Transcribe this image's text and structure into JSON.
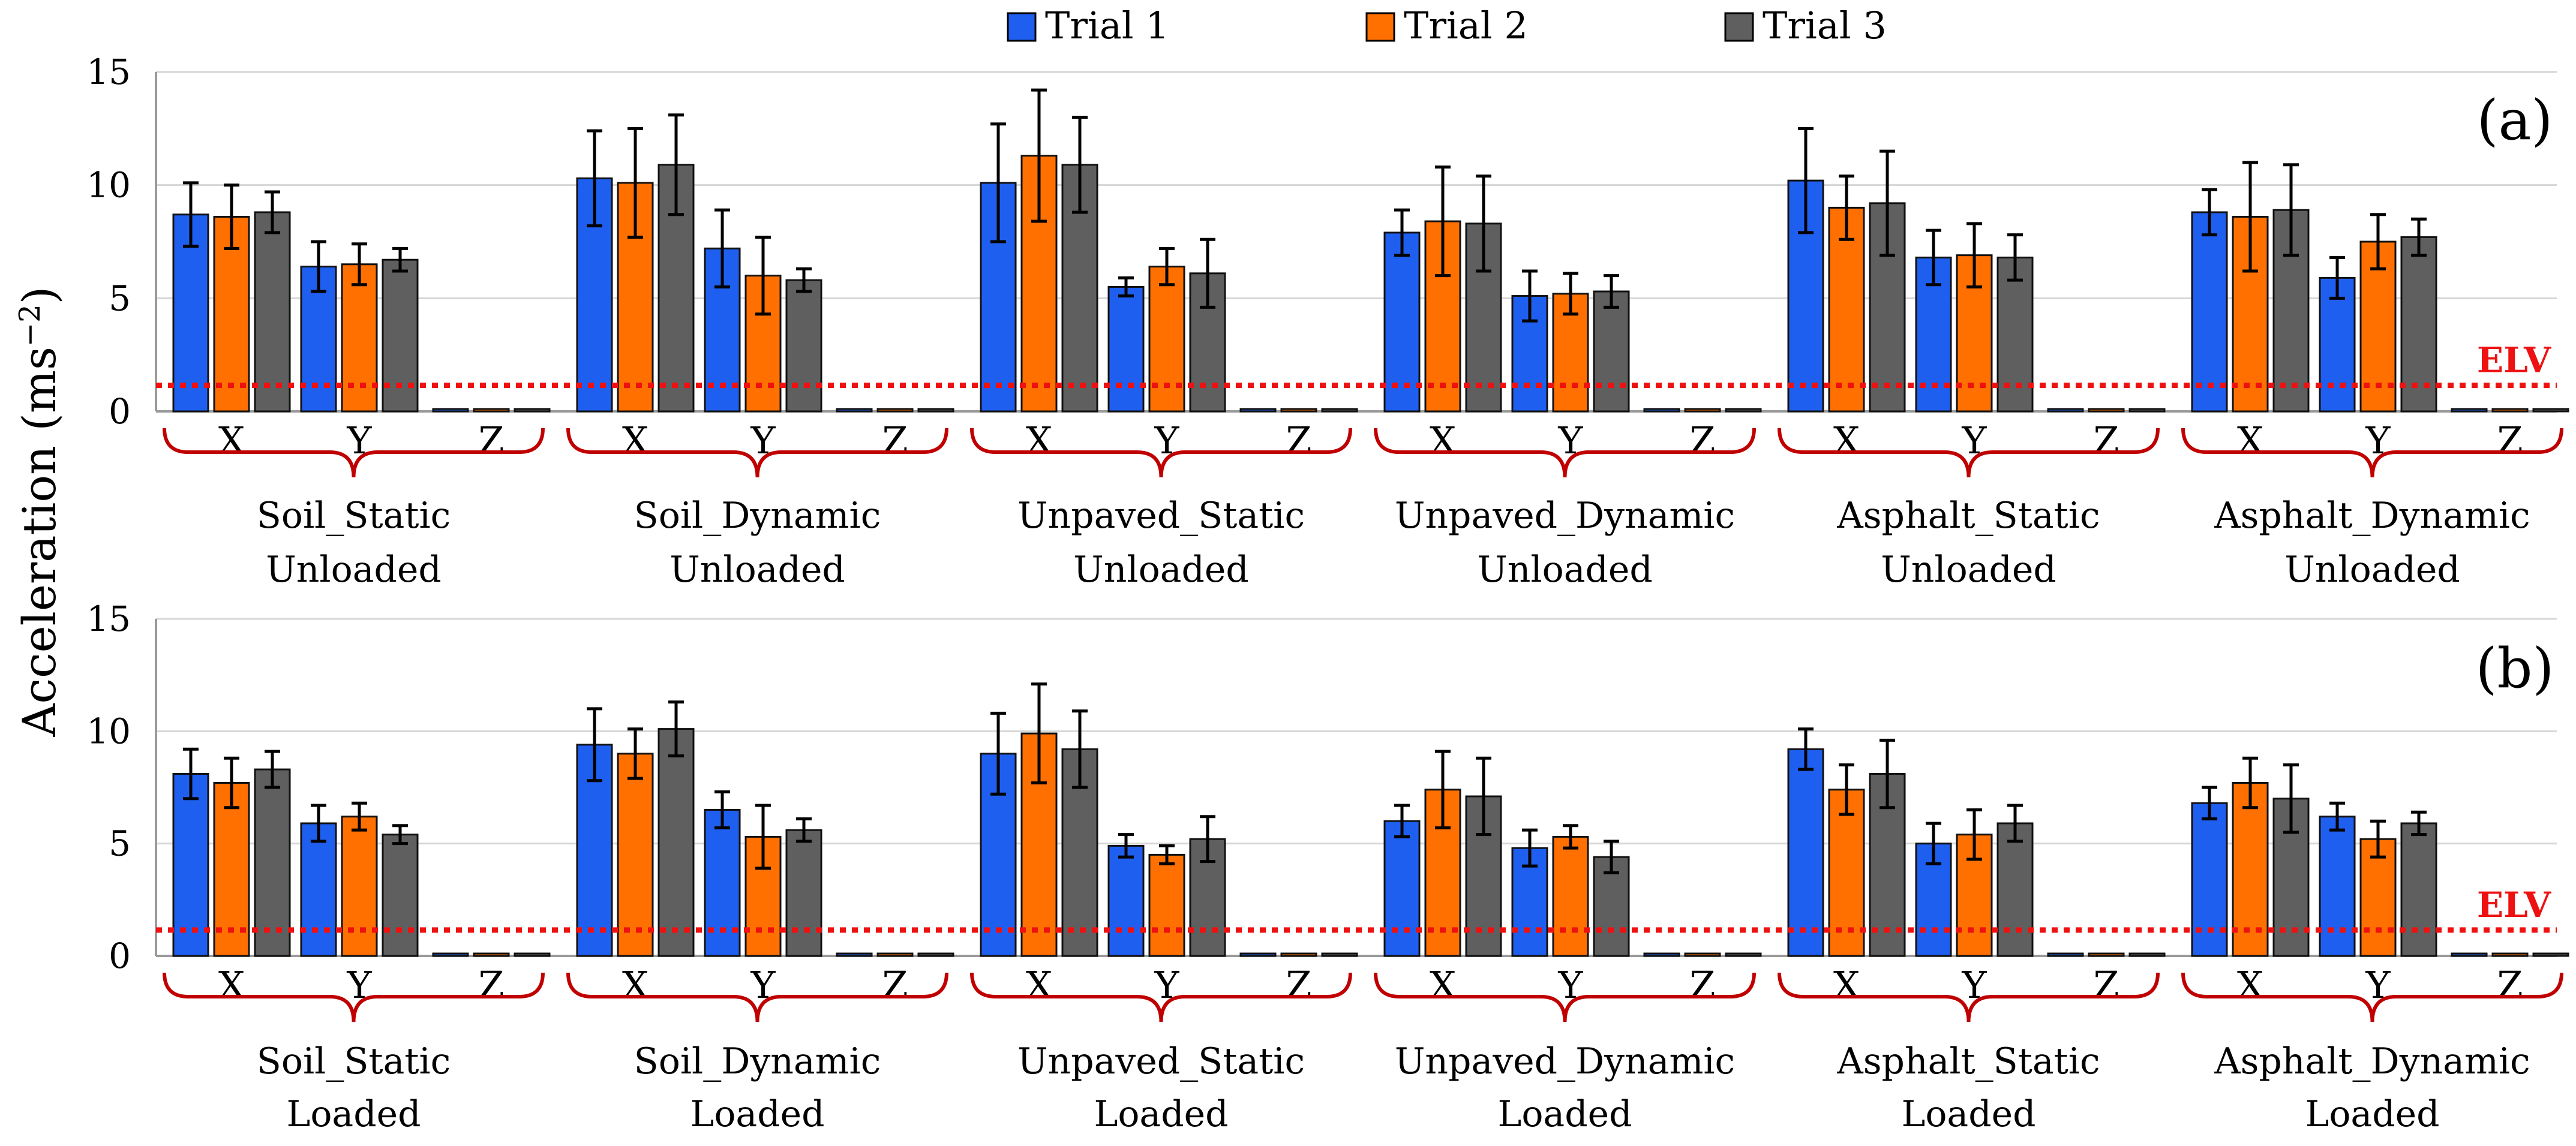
{
  "chart_data": {
    "type": "bar",
    "ylabel": "Acceleration (ms",
    "ylabel_sup": "−2",
    "yticks": [
      "0",
      "5",
      "10",
      "15"
    ],
    "ylim": [
      0,
      15
    ],
    "grid": true,
    "legend": {
      "position": "top-center",
      "entries": [
        {
          "name": "Trial 1",
          "color": "#1f5ff0"
        },
        {
          "name": "Trial 2",
          "color": "#ff7000"
        },
        {
          "name": "Trial 3",
          "color": "#5f5f5f"
        }
      ]
    },
    "elv": {
      "label": "ELV",
      "value": 1.15,
      "color": "#ee1111"
    },
    "axes": [
      "X",
      "Y",
      "Z"
    ],
    "panels": [
      {
        "tag": "(a)",
        "groups": [
          {
            "name": "Soil_Static",
            "condition": "Unloaded",
            "values": [
              [
                8.7,
                8.6,
                8.8
              ],
              [
                6.4,
                6.5,
                6.7
              ],
              [
                0.1,
                0.1,
                0.1
              ]
            ],
            "errors": [
              [
                1.4,
                1.4,
                0.9
              ],
              [
                1.1,
                0.9,
                0.5
              ],
              [
                0.05,
                0.05,
                0.05
              ]
            ]
          },
          {
            "name": "Soil_Dynamic",
            "condition": "Unloaded",
            "values": [
              [
                10.3,
                10.1,
                10.9
              ],
              [
                7.2,
                6.0,
                5.8
              ],
              [
                0.1,
                0.1,
                0.1
              ]
            ],
            "errors": [
              [
                2.1,
                2.4,
                2.2
              ],
              [
                1.7,
                1.7,
                0.5
              ],
              [
                0.05,
                0.05,
                0.05
              ]
            ]
          },
          {
            "name": "Unpaved_Static",
            "condition": "Unloaded",
            "values": [
              [
                10.1,
                11.3,
                10.9
              ],
              [
                5.5,
                6.4,
                6.1
              ],
              [
                0.1,
                0.1,
                0.1
              ]
            ],
            "errors": [
              [
                2.6,
                2.9,
                2.1
              ],
              [
                0.4,
                0.8,
                1.5
              ],
              [
                0.05,
                0.05,
                0.05
              ]
            ]
          },
          {
            "name": "Unpaved_Dynamic",
            "condition": "Unloaded",
            "values": [
              [
                7.9,
                8.4,
                8.3
              ],
              [
                5.1,
                5.2,
                5.3
              ],
              [
                0.1,
                0.1,
                0.1
              ]
            ],
            "errors": [
              [
                1.0,
                2.4,
                2.1
              ],
              [
                1.1,
                0.9,
                0.7
              ],
              [
                0.05,
                0.05,
                0.05
              ]
            ]
          },
          {
            "name": "Asphalt_Static",
            "condition": "Unloaded",
            "values": [
              [
                10.2,
                9.0,
                9.2
              ],
              [
                6.8,
                6.9,
                6.8
              ],
              [
                0.1,
                0.1,
                0.1
              ]
            ],
            "errors": [
              [
                2.3,
                1.4,
                2.3
              ],
              [
                1.2,
                1.4,
                1.0
              ],
              [
                0.05,
                0.05,
                0.05
              ]
            ]
          },
          {
            "name": "Asphalt_Dynamic",
            "condition": "Unloaded",
            "values": [
              [
                8.8,
                8.6,
                8.9
              ],
              [
                5.9,
                7.5,
                7.7
              ],
              [
                0.1,
                0.1,
                0.1
              ]
            ],
            "errors": [
              [
                1.0,
                2.4,
                2.0
              ],
              [
                0.9,
                1.2,
                0.8
              ],
              [
                0.05,
                0.05,
                0.05
              ]
            ]
          }
        ]
      },
      {
        "tag": "(b)",
        "groups": [
          {
            "name": "Soil_Static",
            "condition": "Loaded",
            "values": [
              [
                8.1,
                7.7,
                8.3
              ],
              [
                5.9,
                6.2,
                5.4
              ],
              [
                0.1,
                0.1,
                0.1
              ]
            ],
            "errors": [
              [
                1.1,
                1.1,
                0.8
              ],
              [
                0.8,
                0.6,
                0.4
              ],
              [
                0.05,
                0.05,
                0.05
              ]
            ]
          },
          {
            "name": "Soil_Dynamic",
            "condition": "Loaded",
            "values": [
              [
                9.4,
                9.0,
                10.1
              ],
              [
                6.5,
                5.3,
                5.6
              ],
              [
                0.1,
                0.1,
                0.1
              ]
            ],
            "errors": [
              [
                1.6,
                1.1,
                1.2
              ],
              [
                0.8,
                1.4,
                0.5
              ],
              [
                0.05,
                0.05,
                0.05
              ]
            ]
          },
          {
            "name": "Unpaved_Static",
            "condition": "Loaded",
            "values": [
              [
                9.0,
                9.9,
                9.2
              ],
              [
                4.9,
                4.5,
                5.2
              ],
              [
                0.1,
                0.1,
                0.1
              ]
            ],
            "errors": [
              [
                1.8,
                2.2,
                1.7
              ],
              [
                0.5,
                0.4,
                1.0
              ],
              [
                0.05,
                0.05,
                0.05
              ]
            ]
          },
          {
            "name": "Unpaved_Dynamic",
            "condition": "Loaded",
            "values": [
              [
                6.0,
                7.4,
                7.1
              ],
              [
                4.8,
                5.3,
                4.4
              ],
              [
                0.1,
                0.1,
                0.1
              ]
            ],
            "errors": [
              [
                0.7,
                1.7,
                1.7
              ],
              [
                0.8,
                0.5,
                0.7
              ],
              [
                0.05,
                0.05,
                0.05
              ]
            ]
          },
          {
            "name": "Asphalt_Static",
            "condition": "Loaded",
            "values": [
              [
                9.2,
                7.4,
                8.1
              ],
              [
                5.0,
                5.4,
                5.9
              ],
              [
                0.1,
                0.1,
                0.1
              ]
            ],
            "errors": [
              [
                0.9,
                1.1,
                1.5
              ],
              [
                0.9,
                1.1,
                0.8
              ],
              [
                0.05,
                0.05,
                0.05
              ]
            ]
          },
          {
            "name": "Asphalt_Dynamic",
            "condition": "Loaded",
            "values": [
              [
                6.8,
                7.7,
                7.0
              ],
              [
                6.2,
                5.2,
                5.9
              ],
              [
                0.1,
                0.1,
                0.1
              ]
            ],
            "errors": [
              [
                0.7,
                1.1,
                1.5
              ],
              [
                0.6,
                0.8,
                0.5
              ],
              [
                0.05,
                0.05,
                0.05
              ]
            ]
          }
        ]
      }
    ]
  }
}
